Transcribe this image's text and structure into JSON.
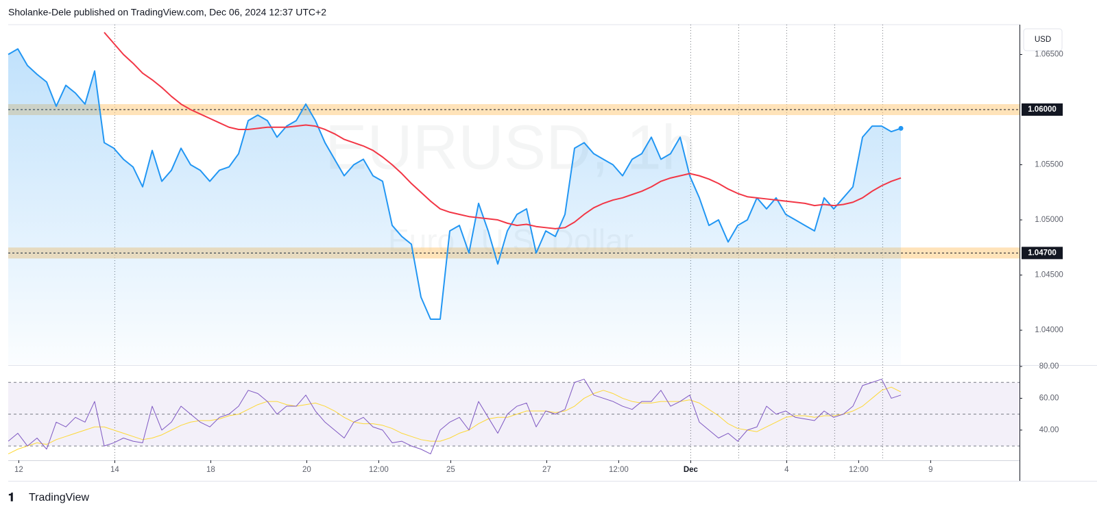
{
  "chart_data": {
    "type": "line",
    "header": "Sholanke-Dele published on TradingView.com, Dec 06, 2024 12:37 UTC+2",
    "currency": "USD",
    "watermark_title": "EURUSD, 1h",
    "watermark_subtitle": "Euro / U.S. Dollar",
    "footer_brand": "TradingView",
    "xlim": [
      0,
      105.36
    ],
    "xticks": [
      {
        "value": 1.1,
        "label": "12"
      },
      {
        "value": 11.1,
        "label": "14"
      },
      {
        "value": 21.1,
        "label": "18"
      },
      {
        "value": 31.1,
        "label": "20"
      },
      {
        "value": 38.6,
        "label": "12:00"
      },
      {
        "value": 46.1,
        "label": "25"
      },
      {
        "value": 56.1,
        "label": "27"
      },
      {
        "value": 63.6,
        "label": "12:00"
      },
      {
        "value": 71.1,
        "label": "Dec"
      },
      {
        "value": 81.1,
        "label": "4"
      },
      {
        "value": 88.6,
        "label": "12:00"
      },
      {
        "value": 96.1,
        "label": "9"
      }
    ],
    "vlines": [
      11.1,
      71.1,
      76.1,
      81.1,
      86.1,
      91.1
    ],
    "ylim": [
      1.0369,
      1.0677
    ],
    "yticks": [
      {
        "value": 1.065,
        "label": "1.06500"
      },
      {
        "value": 1.055,
        "label": "1.05500"
      },
      {
        "value": 1.05,
        "label": "1.05000"
      },
      {
        "value": 1.045,
        "label": "1.04500"
      },
      {
        "value": 1.04,
        "label": "1.04000"
      }
    ],
    "levels": [
      {
        "value": 1.06,
        "label": "1.06000"
      },
      {
        "value": 1.047,
        "label": "1.04700"
      }
    ],
    "series": [
      {
        "color": "#2196f3",
        "values": [
          1.065,
          1.0655,
          1.064,
          1.0632,
          1.0625,
          1.0603,
          1.0622,
          1.0615,
          1.0605,
          1.0635,
          1.057,
          1.0565,
          1.0555,
          1.0548,
          1.053,
          1.0563,
          1.0535,
          1.0545,
          1.0565,
          1.055,
          1.0545,
          1.0535,
          1.0545,
          1.0548,
          1.056,
          1.059,
          1.0595,
          1.059,
          1.0575,
          1.0585,
          1.059,
          1.0605,
          1.059,
          1.057,
          1.0555,
          1.054,
          1.055,
          1.0555,
          1.054,
          1.0535,
          1.0495,
          1.0485,
          1.0478,
          1.043,
          1.041,
          1.041,
          1.049,
          1.0495,
          1.047,
          1.0515,
          1.049,
          1.046,
          1.049,
          1.0505,
          1.051,
          1.047,
          1.049,
          1.0485,
          1.0505,
          1.0565,
          1.057,
          1.056,
          1.0555,
          1.055,
          1.054,
          1.0555,
          1.056,
          1.0575,
          1.0555,
          1.056,
          1.0575,
          1.054,
          1.052,
          1.0495,
          1.05,
          1.048,
          1.0495,
          1.05,
          1.052,
          1.051,
          1.052,
          1.0505,
          1.05,
          1.0495,
          1.049,
          1.052,
          1.051,
          1.052,
          1.053,
          1.0575,
          1.0585,
          1.0585,
          1.058,
          1.0583
        ]
      },
      {
        "color": "#f23645",
        "values": [
          null,
          null,
          null,
          null,
          null,
          null,
          null,
          null,
          null,
          null,
          1.067,
          1.066,
          1.065,
          1.0642,
          1.0633,
          1.0627,
          1.062,
          1.0612,
          1.0605,
          1.06,
          1.0596,
          1.0592,
          1.0588,
          1.0584,
          1.0582,
          1.0582,
          1.0583,
          1.0584,
          1.0584,
          1.0584,
          1.0585,
          1.0586,
          1.0585,
          1.0582,
          1.0578,
          1.0573,
          1.057,
          1.0567,
          1.0563,
          1.0557,
          1.055,
          1.0542,
          1.0533,
          1.0525,
          1.0517,
          1.051,
          1.0507,
          1.0505,
          1.0503,
          1.0502,
          1.0501,
          1.05,
          1.0497,
          1.0495,
          1.0496,
          1.0494,
          1.0493,
          1.0492,
          1.0493,
          1.0498,
          1.0505,
          1.0511,
          1.0515,
          1.0518,
          1.052,
          1.0523,
          1.0526,
          1.053,
          1.0535,
          1.0538,
          1.054,
          1.0542,
          1.054,
          1.0537,
          1.0533,
          1.0528,
          1.0524,
          1.0521,
          1.052,
          1.0519,
          1.0518,
          1.0517,
          1.0516,
          1.0515,
          1.0513,
          1.0514,
          1.0513,
          1.0514,
          1.0516,
          1.052,
          1.0526,
          1.0531,
          1.0535,
          1.0538
        ]
      }
    ],
    "rsi_ylim": [
      21,
      80
    ],
    "rsi_yticks": [
      {
        "value": 80,
        "label": "80.00"
      },
      {
        "value": 60,
        "label": "60.00"
      },
      {
        "value": 40,
        "label": "40.00"
      }
    ],
    "rsi_levels": [
      70,
      50,
      30
    ],
    "rsi_series": [
      {
        "color": "#7e57c2",
        "values": [
          33,
          38,
          30,
          35,
          28,
          45,
          42,
          48,
          45,
          58,
          30,
          32,
          35,
          33,
          32,
          55,
          40,
          45,
          55,
          50,
          45,
          42,
          48,
          50,
          55,
          65,
          63,
          58,
          50,
          55,
          55,
          62,
          52,
          45,
          40,
          35,
          45,
          48,
          42,
          40,
          32,
          33,
          30,
          28,
          25,
          40,
          45,
          48,
          40,
          58,
          48,
          38,
          50,
          55,
          57,
          42,
          52,
          50,
          53,
          70,
          72,
          62,
          60,
          58,
          55,
          53,
          58,
          58,
          65,
          55,
          58,
          62,
          45,
          40,
          35,
          38,
          33,
          40,
          42,
          55,
          50,
          52,
          48,
          47,
          46,
          52,
          48,
          50,
          55,
          68,
          70,
          72,
          60,
          62
        ]
      },
      {
        "color": "#fdd835",
        "values": [
          25,
          28,
          30,
          32,
          31,
          34,
          36,
          38,
          40,
          42,
          42,
          40,
          38,
          36,
          34,
          35,
          37,
          40,
          43,
          45,
          46,
          46,
          47,
          49,
          50,
          53,
          56,
          58,
          58,
          56,
          55,
          56,
          57,
          55,
          52,
          48,
          45,
          44,
          44,
          43,
          41,
          38,
          36,
          34,
          33,
          33,
          35,
          38,
          40,
          44,
          47,
          48,
          48,
          50,
          52,
          52,
          52,
          51,
          52,
          55,
          60,
          63,
          65,
          63,
          60,
          58,
          57,
          57,
          58,
          58,
          58,
          59,
          57,
          53,
          49,
          44,
          41,
          40,
          39,
          42,
          45,
          48,
          49,
          49,
          48,
          49,
          49,
          50,
          52,
          55,
          60,
          65,
          67,
          64
        ]
      }
    ]
  }
}
